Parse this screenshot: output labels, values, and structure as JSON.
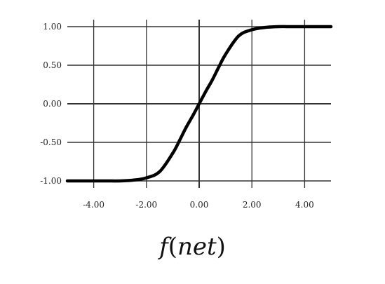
{
  "chart_data": {
    "type": "line",
    "xlabel": "f(net)",
    "xlabel_parts": {
      "fn": "f",
      "open": "(",
      "arg": "net",
      "close": ")"
    },
    "xlim": [
      -5,
      5
    ],
    "ylim": [
      -1,
      1
    ],
    "x_ticks": [
      -4,
      -2,
      0,
      2,
      4
    ],
    "x_tick_labels": [
      "-4.00",
      "-2.00",
      "0.00",
      "2.00",
      "4.00"
    ],
    "y_ticks": [
      1,
      0.5,
      0,
      -0.5,
      -1
    ],
    "y_tick_labels": [
      "1.00",
      "0.50",
      "0.00",
      "-0.50",
      "-1.00"
    ],
    "grid": true,
    "series": [
      {
        "color": "#000000",
        "x": [
          -5,
          -4.5,
          -4,
          -3.5,
          -3,
          -2.5,
          -2,
          -1.5,
          -1,
          -0.75,
          -0.5,
          -0.25,
          0,
          0.25,
          0.5,
          0.75,
          1,
          1.5,
          2,
          2.5,
          3,
          3.5,
          4,
          4.5,
          5
        ],
        "y": [
          -1.0,
          -1.0,
          -1.0,
          -1.0,
          -1.0,
          -0.99,
          -0.96,
          -0.88,
          -0.64,
          -0.48,
          -0.31,
          -0.16,
          0.0,
          0.16,
          0.31,
          0.48,
          0.64,
          0.88,
          0.96,
          0.99,
          1.0,
          1.0,
          1.0,
          1.0,
          1.0
        ]
      }
    ]
  }
}
